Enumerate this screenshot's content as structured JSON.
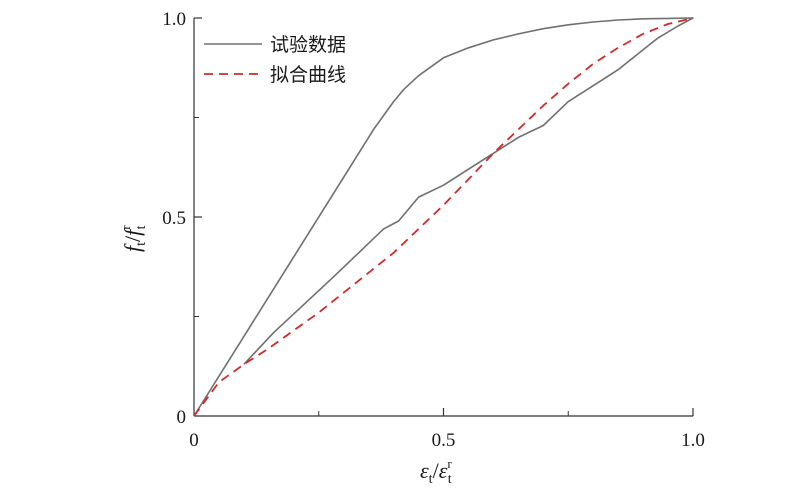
{
  "chart_data": {
    "type": "line",
    "xlabel": {
      "main": "ε",
      "sub": "t",
      "sep": "/",
      "main2": "ε",
      "sup2": "r",
      "sub2": "t"
    },
    "ylabel": {
      "main": "f",
      "sub": "t",
      "sep": "/",
      "main2": "f",
      "sup2": "r",
      "sub2": "t"
    },
    "xlim": [
      0,
      1.0
    ],
    "ylim": [
      0,
      1.0
    ],
    "xticks": [
      {
        "value": 0,
        "label": "0"
      },
      {
        "value": 0.5,
        "label": "0.5"
      },
      {
        "value": 1.0,
        "label": "1.0"
      }
    ],
    "yticks": [
      {
        "value": 0,
        "label": "0"
      },
      {
        "value": 0.5,
        "label": "0.5"
      },
      {
        "value": 1.0,
        "label": "1.0"
      }
    ],
    "minor_ticks": [
      0.25,
      0.75
    ],
    "grid": false,
    "legend": {
      "position": "top-left"
    },
    "colors": {
      "experimental": "#707070",
      "fit": "#d12a2a",
      "axis": "#333333"
    },
    "series": [
      {
        "name": "试验数据",
        "style": "solid",
        "x": [
          0,
          0.1,
          0.2,
          0.3,
          0.36,
          0.4,
          0.42,
          0.45,
          0.5,
          0.55,
          0.6,
          0.65,
          0.7,
          0.75,
          0.8,
          0.85,
          0.9,
          0.95,
          1.0,
          0.97,
          0.93,
          0.9,
          0.85,
          0.8,
          0.75,
          0.7,
          0.65,
          0.6,
          0.55,
          0.5,
          0.45,
          0.41,
          0.38,
          0.33,
          0.28,
          0.22,
          0.16,
          0.13,
          0.1
        ],
        "y": [
          0,
          0.2,
          0.4,
          0.6,
          0.72,
          0.79,
          0.82,
          0.855,
          0.9,
          0.925,
          0.945,
          0.96,
          0.973,
          0.983,
          0.99,
          0.995,
          0.998,
          0.999,
          1.0,
          0.98,
          0.95,
          0.92,
          0.87,
          0.83,
          0.79,
          0.73,
          0.7,
          0.66,
          0.62,
          0.58,
          0.55,
          0.49,
          0.47,
          0.41,
          0.35,
          0.28,
          0.21,
          0.17,
          0.13
        ]
      },
      {
        "name": "拟合曲线",
        "style": "dashed",
        "x": [
          0,
          0.05,
          0.1,
          0.15,
          0.2,
          0.25,
          0.3,
          0.35,
          0.4,
          0.45,
          0.5,
          0.55,
          0.6,
          0.65,
          0.7,
          0.75,
          0.8,
          0.85,
          0.9,
          0.95,
          1.0
        ],
        "y": [
          0,
          0.085,
          0.13,
          0.17,
          0.215,
          0.26,
          0.31,
          0.36,
          0.41,
          0.47,
          0.53,
          0.595,
          0.66,
          0.72,
          0.78,
          0.835,
          0.885,
          0.925,
          0.96,
          0.985,
          1.0
        ]
      }
    ]
  }
}
